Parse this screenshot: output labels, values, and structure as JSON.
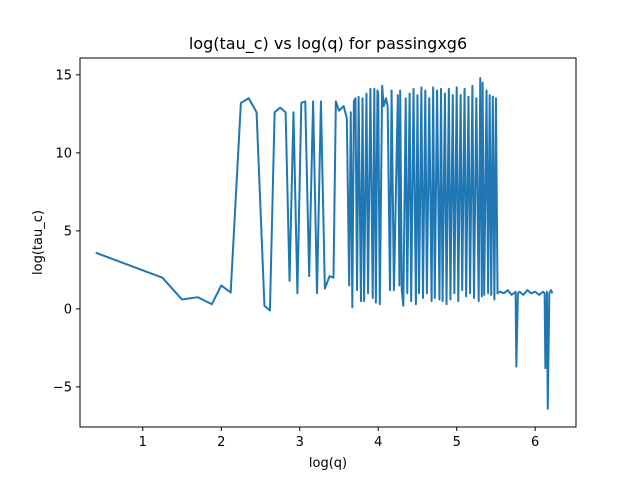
{
  "chart_data": {
    "type": "line",
    "title": "log(tau_c) vs log(q) for passingxg6",
    "xlabel": "log(q)",
    "ylabel": "log(tau_c)",
    "xlim": [
      0.2,
      6.52
    ],
    "ylim": [
      -7.57,
      16.08
    ],
    "xticks": [
      1,
      2,
      3,
      4,
      5,
      6
    ],
    "xtick_labels": [
      "1",
      "2",
      "3",
      "4",
      "5",
      "6"
    ],
    "yticks": [
      -5,
      0,
      5,
      10,
      15
    ],
    "ytick_labels": [
      "−5",
      "0",
      "5",
      "10",
      "15"
    ],
    "grid": false,
    "legend": "none",
    "series": [
      {
        "color": "#1f77b4",
        "x": [
          0.4,
          1.25,
          1.5,
          1.7,
          1.88,
          2.0,
          2.12,
          2.25,
          2.35,
          2.45,
          2.55,
          2.62,
          2.68,
          2.75,
          2.82,
          2.87,
          2.92,
          2.97,
          3.02,
          3.07,
          3.12,
          3.17,
          3.22,
          3.27,
          3.32,
          3.38,
          3.43,
          3.46,
          3.5,
          3.56,
          3.6,
          3.63,
          3.65,
          3.67,
          3.69,
          3.71,
          3.73,
          3.75,
          3.78,
          3.8,
          3.82,
          3.85,
          3.87,
          3.9,
          3.93,
          3.95,
          3.97,
          3.99,
          4.0,
          4.02,
          4.05,
          4.07,
          4.1,
          4.12,
          4.15,
          4.17,
          4.2,
          4.25,
          4.27,
          4.28,
          4.3,
          4.32,
          4.35,
          4.37,
          4.4,
          4.42,
          4.45,
          4.48,
          4.5,
          4.52,
          4.55,
          4.57,
          4.6,
          4.62,
          4.65,
          4.68,
          4.7,
          4.72,
          4.75,
          4.78,
          4.8,
          4.82,
          4.85,
          4.87,
          4.9,
          4.92,
          4.95,
          4.97,
          5.0,
          5.02,
          5.05,
          5.07,
          5.1,
          5.12,
          5.15,
          5.17,
          5.2,
          5.22,
          5.25,
          5.28,
          5.3,
          5.32,
          5.33,
          5.35,
          5.38,
          5.4,
          5.42,
          5.44,
          5.46,
          5.48,
          5.5,
          5.52,
          5.55,
          5.6,
          5.65,
          5.7,
          5.75,
          5.76,
          5.78,
          5.8,
          5.85,
          5.9,
          5.95,
          6.0,
          6.05,
          6.1,
          6.12,
          6.13,
          6.15,
          6.16,
          6.18,
          6.2,
          6.22
        ],
        "y": [
          3.6,
          2.0,
          0.6,
          0.75,
          0.3,
          1.5,
          1.05,
          13.2,
          13.5,
          12.6,
          0.2,
          -0.1,
          12.6,
          12.9,
          12.6,
          1.8,
          12.6,
          1.0,
          13.2,
          13.3,
          2.1,
          13.3,
          1.0,
          13.3,
          1.3,
          2.1,
          2.0,
          13.3,
          12.7,
          13.0,
          12.2,
          1.5,
          12.6,
          0.1,
          13.3,
          13.5,
          1.2,
          13.6,
          0.5,
          13.5,
          0.5,
          13.8,
          1.0,
          14.1,
          0.7,
          14.1,
          0.4,
          14.0,
          13.8,
          0.3,
          14.3,
          13.0,
          13.5,
          13.0,
          1.2,
          14.0,
          1.2,
          13.7,
          1.5,
          14.0,
          1.2,
          0.2,
          13.5,
          1.0,
          13.8,
          0.5,
          14.1,
          0.3,
          13.7,
          1.0,
          14.2,
          0.7,
          14.0,
          1.0,
          13.5,
          0.5,
          14.2,
          0.7,
          14.0,
          0.6,
          14.1,
          0.5,
          13.8,
          0.3,
          14.1,
          0.6,
          13.7,
          1.0,
          14.2,
          0.5,
          13.7,
          1.2,
          14.1,
          0.8,
          13.6,
          1.0,
          14.3,
          0.7,
          13.5,
          0.5,
          14.8,
          0.8,
          14.5,
          0.9,
          14.0,
          1.0,
          13.7,
          0.9,
          13.6,
          0.6,
          13.5,
          1.0,
          1.1,
          1.0,
          1.2,
          0.9,
          1.1,
          -3.7,
          1.0,
          1.1,
          0.9,
          1.2,
          1.0,
          1.1,
          0.9,
          1.1,
          1.0,
          -3.8,
          1.1,
          -6.4,
          1.0,
          1.2,
          1.0
        ]
      }
    ]
  }
}
